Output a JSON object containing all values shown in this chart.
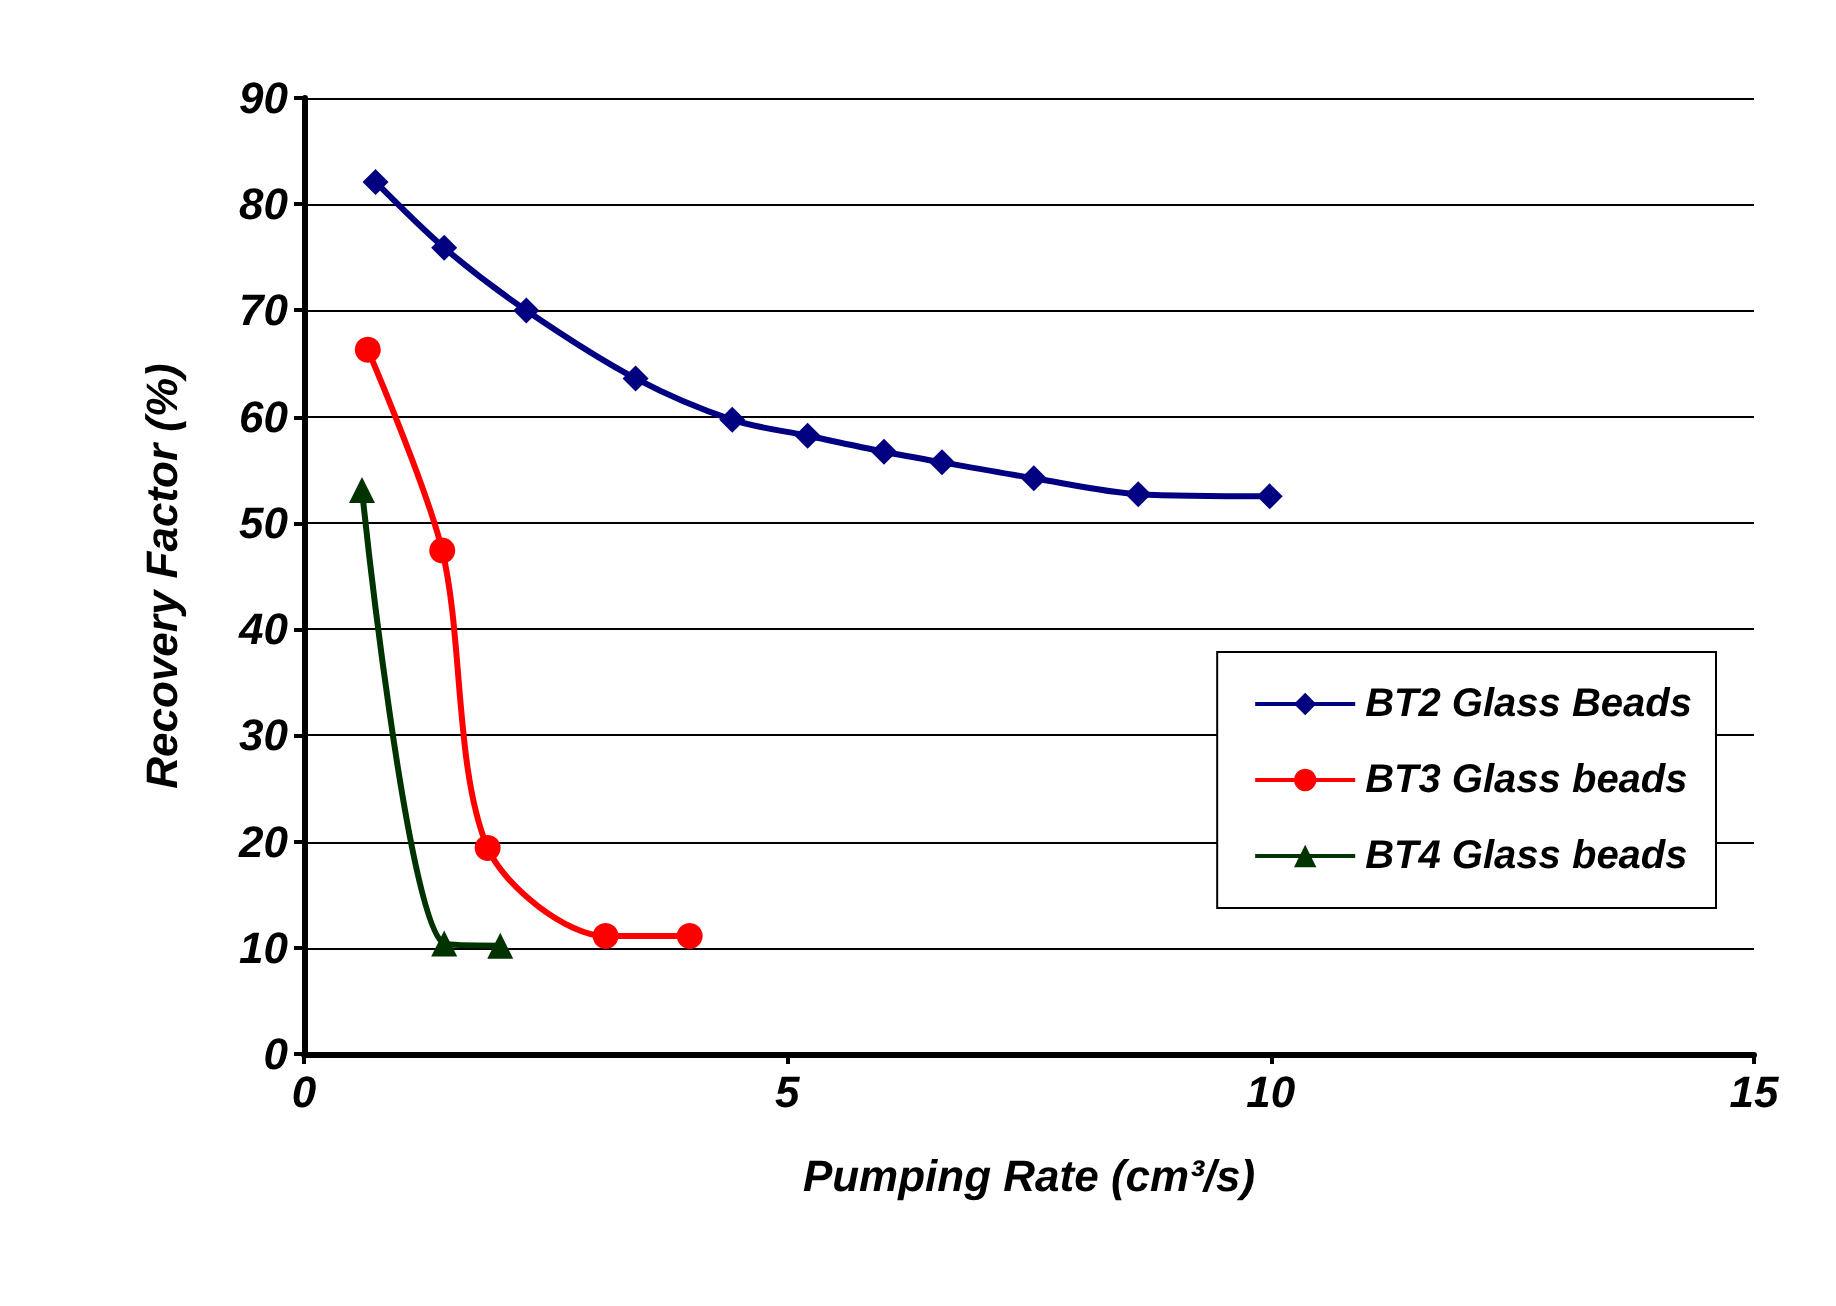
{
  "chart_data": {
    "type": "line",
    "xlabel": "Pumping Rate (cm³/s)",
    "ylabel": "Recovery Factor (%)",
    "xlim": [
      0,
      15
    ],
    "xticks": [
      0,
      5,
      10,
      15
    ],
    "ylim": [
      0,
      90
    ],
    "yticks": [
      0,
      10,
      20,
      30,
      40,
      50,
      60,
      70,
      80,
      90
    ],
    "grid": "y",
    "legend": "right",
    "series": [
      {
        "name": "BT2 Glass Beads",
        "color": "#000080",
        "marker": "diamond",
        "x": [
          0.74,
          1.45,
          2.3,
          3.43,
          4.43,
          5.21,
          6.0,
          6.6,
          7.55,
          8.63,
          9.99
        ],
        "values": [
          82.1,
          75.9,
          70.0,
          63.6,
          59.7,
          58.2,
          56.7,
          55.7,
          54.2,
          52.7,
          52.5
        ]
      },
      {
        "name": "BT3 Glass beads",
        "color": "#ff0000",
        "marker": "circle",
        "x": [
          0.66,
          1.43,
          1.9,
          3.12,
          3.99
        ],
        "values": [
          66.3,
          47.4,
          19.4,
          11.1,
          11.1
        ]
      },
      {
        "name": "BT4 Glass beads",
        "color": "#003300",
        "marker": "triangle",
        "x": [
          0.6,
          1.45,
          2.03
        ],
        "values": [
          53.1,
          10.4,
          10.2
        ]
      }
    ]
  }
}
